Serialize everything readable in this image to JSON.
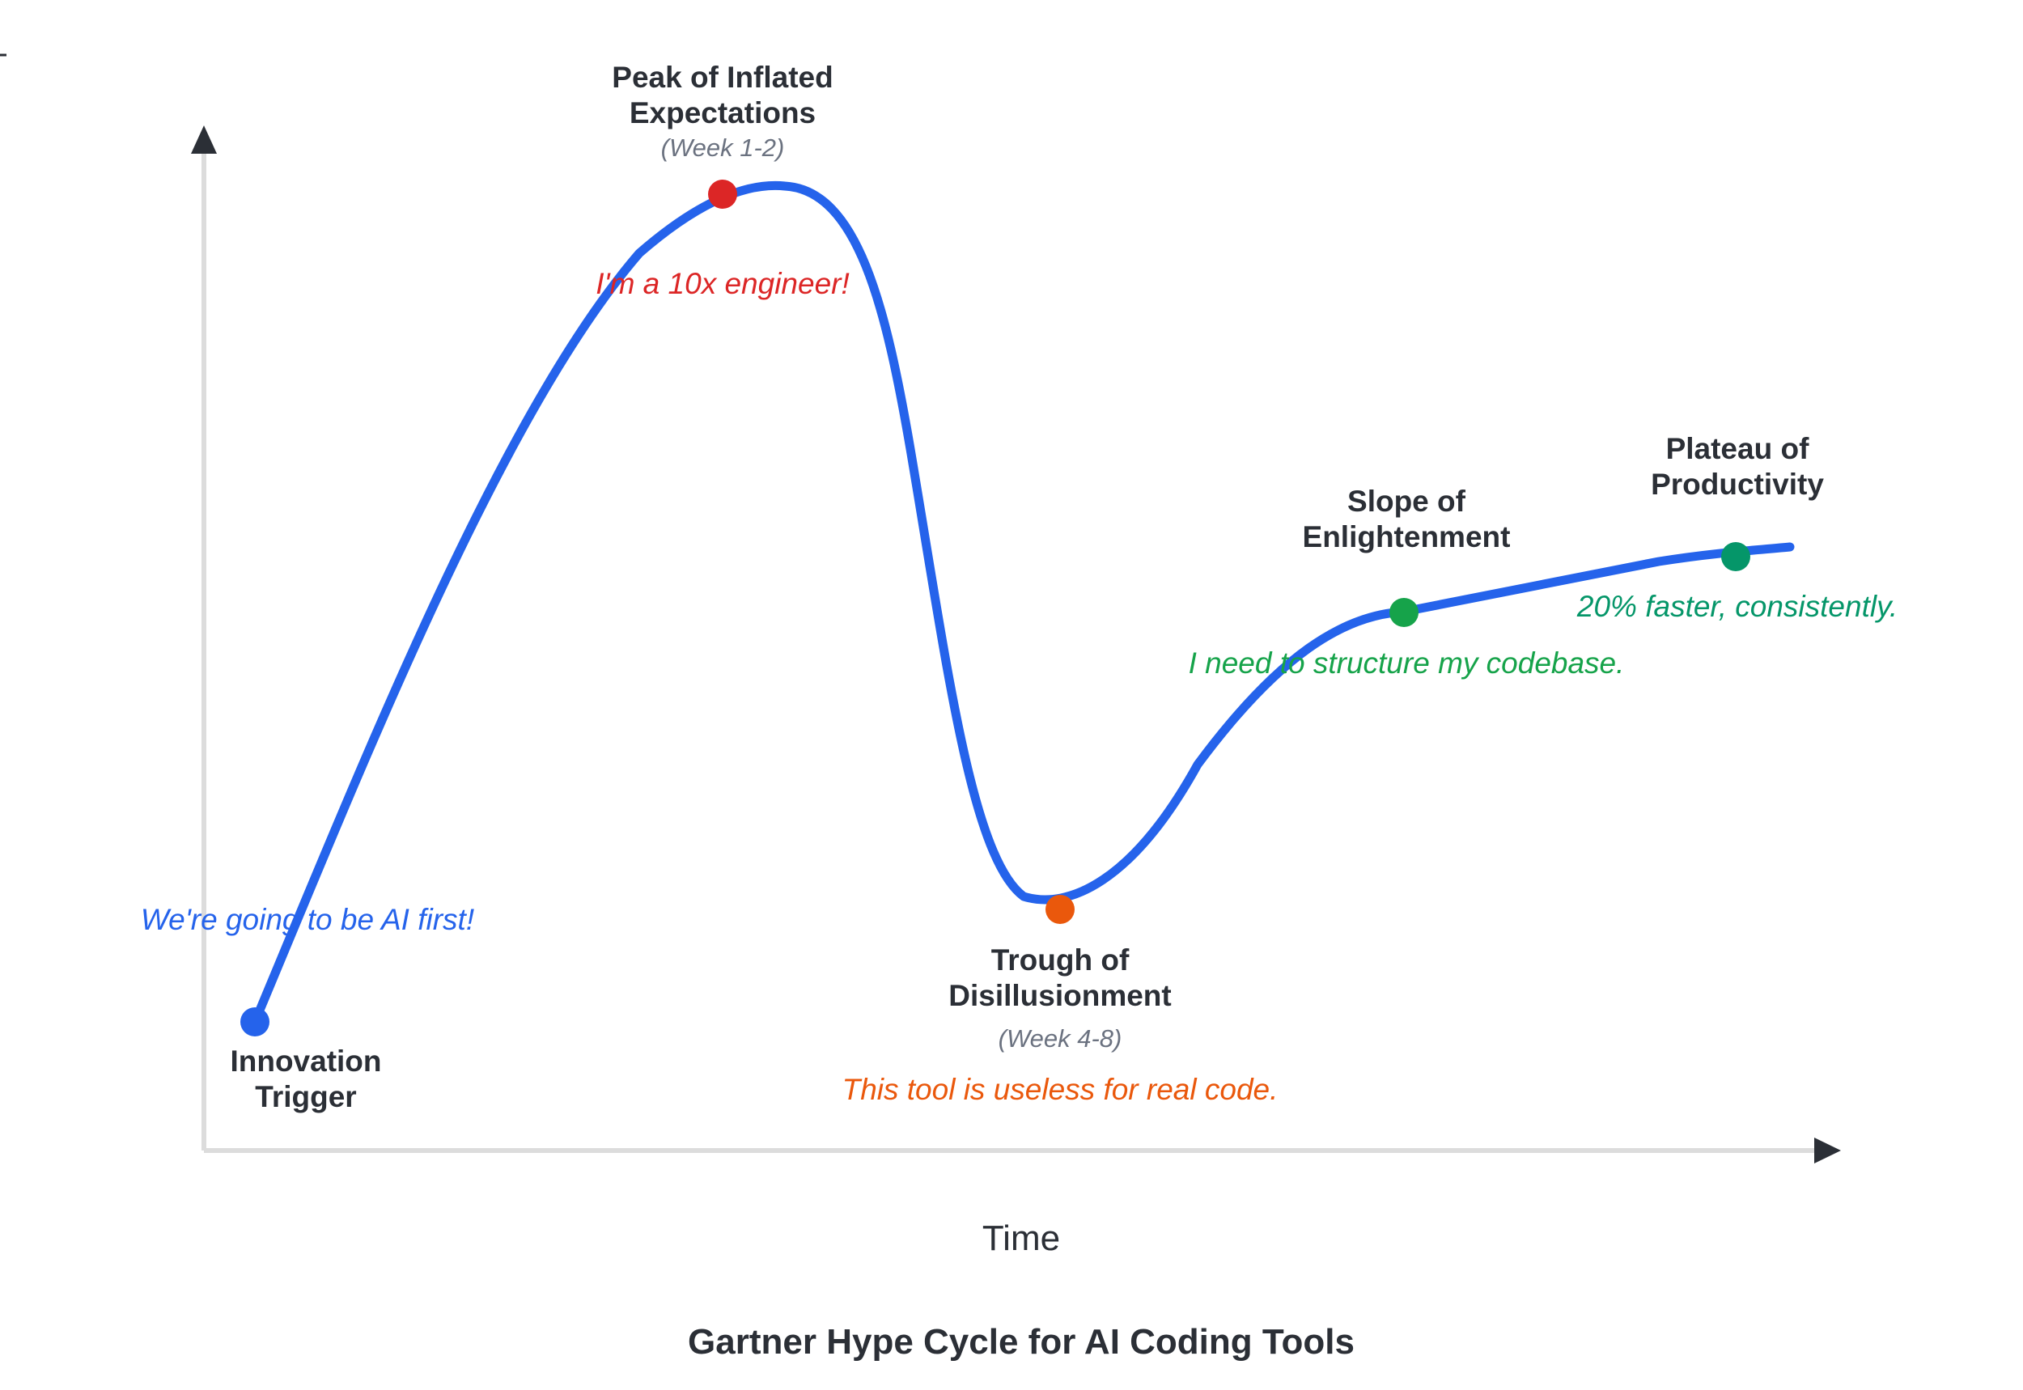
{
  "title": "Gartner Hype Cycle for AI Coding Tools",
  "x_axis_label": "Time",
  "colors": {
    "curve": "#2563eb",
    "axis": "#dcdcdc",
    "arrow": "#2b2f36",
    "innovation": "#2563eb",
    "peak": "#dc2626",
    "trough": "#ea580c",
    "slope": "#16a34a",
    "plateau": "#059669"
  },
  "phases": {
    "innovation": {
      "name_line1": "Innovation",
      "name_line2": "Trigger",
      "quote": "We're going to be AI first!"
    },
    "peak": {
      "name_line1": "Peak of Inflated",
      "name_line2": "Expectations",
      "period": "(Week 1-2)",
      "quote": "I'm a 10x engineer!"
    },
    "trough": {
      "name_line1": "Trough of",
      "name_line2": "Disillusionment",
      "period": "(Week 4-8)",
      "quote": "This tool is useless for real code."
    },
    "slope": {
      "name_line1": "Slope of",
      "name_line2": "Enlightenment",
      "quote": "I need to structure my codebase."
    },
    "plateau": {
      "name_line1": "Plateau of",
      "name_line2": "Productivity",
      "quote": "20% faster, consistently."
    }
  }
}
